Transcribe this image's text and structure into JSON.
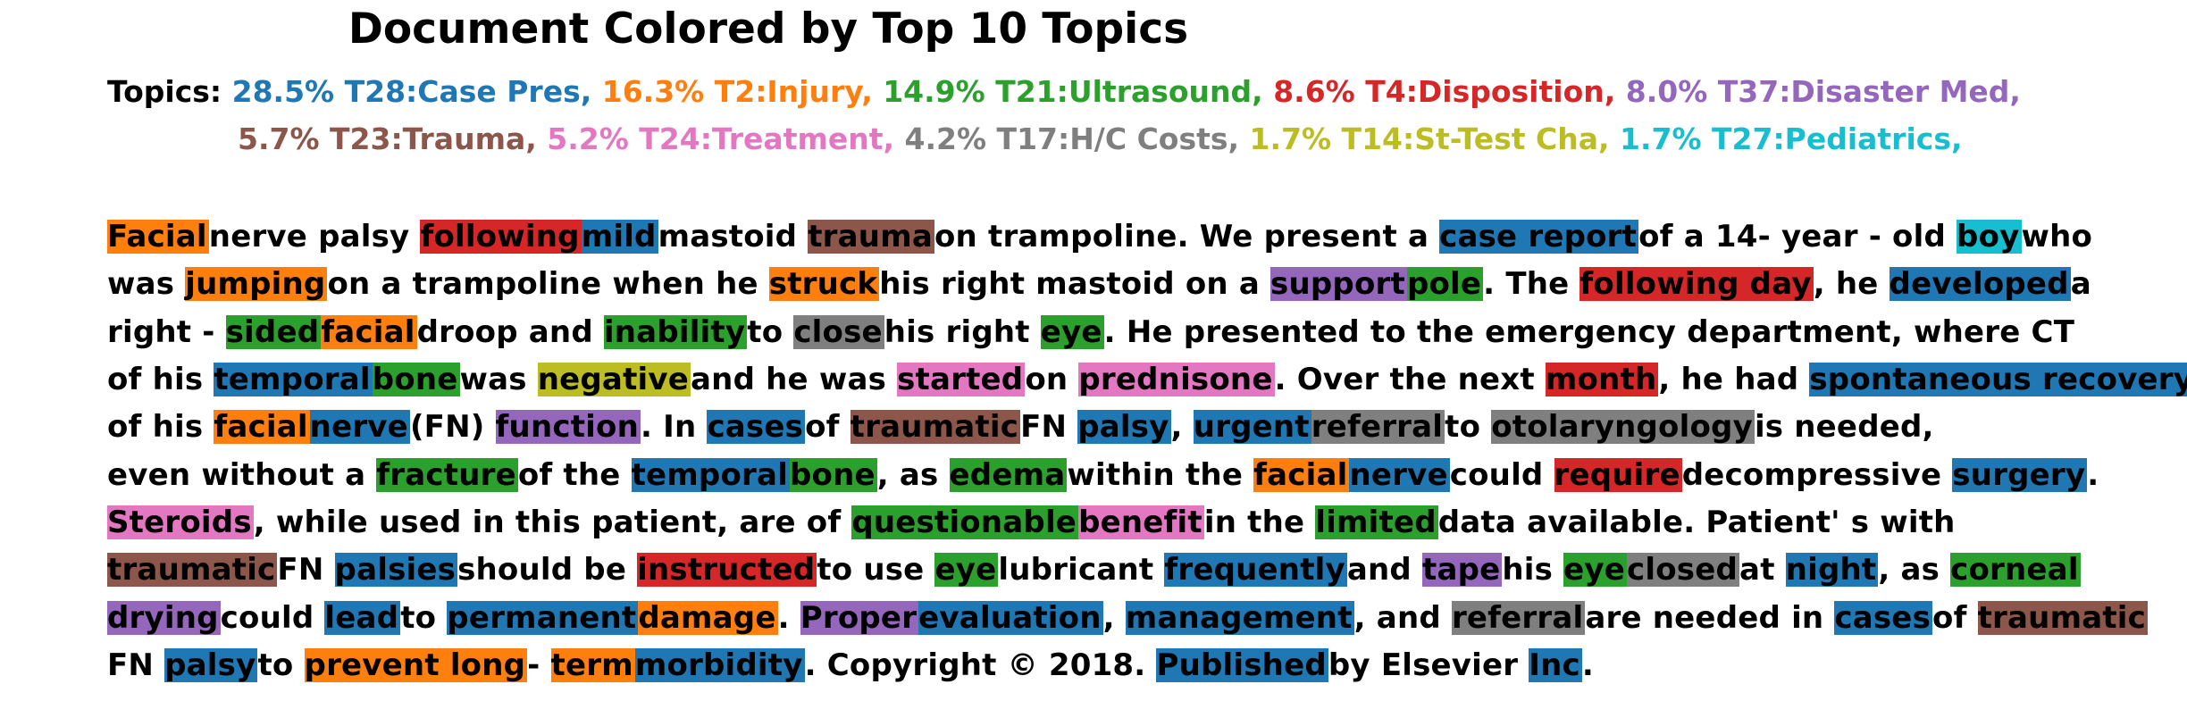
{
  "title": "Document Colored by Top 10 Topics",
  "topics_label": "Topics: ",
  "topic_lines": [
    [
      {
        "text": "28.5% T28:Case Pres, ",
        "color": "#1f77b4"
      },
      {
        "text": "16.3% T2:Injury, ",
        "color": "#ff7f0e"
      },
      {
        "text": "14.9% T21:Ultrasound, ",
        "color": "#2ca02c"
      },
      {
        "text": "8.6% T4:Disposition, ",
        "color": "#d62728"
      },
      {
        "text": "8.0% T37:Disaster Med, ",
        "color": "#9467bd"
      }
    ],
    [
      {
        "text": "5.7% T23:Trauma, ",
        "color": "#8c564b"
      },
      {
        "text": "5.2% T24:Treatment, ",
        "color": "#e377c2"
      },
      {
        "text": "4.2% T17:H/C Costs, ",
        "color": "#7f7f7f"
      },
      {
        "text": "1.7% T14:St-Test Cha, ",
        "color": "#bcbd22"
      },
      {
        "text": "1.7% T27:Pediatrics, ",
        "color": "#17becf"
      }
    ]
  ],
  "document_lines": [
    [
      {
        "t": "Facial ",
        "c": "#ff7f0e"
      },
      {
        "t": "nerve palsy "
      },
      {
        "t": "following ",
        "c": "#d62728"
      },
      {
        "t": "mild ",
        "c": "#1f77b4"
      },
      {
        "t": "mastoid "
      },
      {
        "t": "trauma ",
        "c": "#8c564b"
      },
      {
        "t": "on trampoline. We present a "
      },
      {
        "t": "case report ",
        "c": "#1f77b4"
      },
      {
        "t": "of a 14- year - old "
      },
      {
        "t": "boy ",
        "c": "#17becf"
      },
      {
        "t": "who"
      }
    ],
    [
      {
        "t": "was "
      },
      {
        "t": "jumping ",
        "c": "#ff7f0e"
      },
      {
        "t": "on a trampoline when he "
      },
      {
        "t": "struck ",
        "c": "#ff7f0e"
      },
      {
        "t": "his right mastoid on a "
      },
      {
        "t": "support ",
        "c": "#9467bd"
      },
      {
        "t": "pole",
        "c": "#2ca02c"
      },
      {
        "t": ". The "
      },
      {
        "t": "following day",
        "c": "#d62728"
      },
      {
        "t": ", he "
      },
      {
        "t": "developed ",
        "c": "#1f77b4"
      },
      {
        "t": "a"
      }
    ],
    [
      {
        "t": "right - "
      },
      {
        "t": "sided ",
        "c": "#2ca02c"
      },
      {
        "t": "facial ",
        "c": "#ff7f0e"
      },
      {
        "t": "droop and "
      },
      {
        "t": "inability ",
        "c": "#2ca02c"
      },
      {
        "t": "to "
      },
      {
        "t": "close ",
        "c": "#7f7f7f"
      },
      {
        "t": "his right "
      },
      {
        "t": "eye",
        "c": "#2ca02c"
      },
      {
        "t": ". He presented to the emergency department, where CT"
      }
    ],
    [
      {
        "t": "of his "
      },
      {
        "t": "temporal ",
        "c": "#1f77b4"
      },
      {
        "t": "bone ",
        "c": "#2ca02c"
      },
      {
        "t": "was "
      },
      {
        "t": "negative ",
        "c": "#bcbd22"
      },
      {
        "t": "and he was "
      },
      {
        "t": "started ",
        "c": "#e377c2"
      },
      {
        "t": "on "
      },
      {
        "t": "prednisone",
        "c": "#e377c2"
      },
      {
        "t": ". Over the next "
      },
      {
        "t": "month",
        "c": "#d62728"
      },
      {
        "t": ", he had "
      },
      {
        "t": "spontaneous recovery ",
        "c": "#1f77b4"
      }
    ],
    [
      {
        "t": "of his "
      },
      {
        "t": "facial ",
        "c": "#ff7f0e"
      },
      {
        "t": "nerve ",
        "c": "#1f77b4"
      },
      {
        "t": "(FN) "
      },
      {
        "t": "function",
        "c": "#9467bd"
      },
      {
        "t": ". In "
      },
      {
        "t": "cases ",
        "c": "#1f77b4"
      },
      {
        "t": "of "
      },
      {
        "t": "traumatic ",
        "c": "#8c564b"
      },
      {
        "t": "FN "
      },
      {
        "t": "palsy",
        "c": "#1f77b4"
      },
      {
        "t": ", "
      },
      {
        "t": "urgent ",
        "c": "#1f77b4"
      },
      {
        "t": "referral ",
        "c": "#7f7f7f"
      },
      {
        "t": "to "
      },
      {
        "t": "otolaryngology ",
        "c": "#7f7f7f"
      },
      {
        "t": "is needed,"
      }
    ],
    [
      {
        "t": "even without a "
      },
      {
        "t": "fracture ",
        "c": "#2ca02c"
      },
      {
        "t": "of the "
      },
      {
        "t": "temporal ",
        "c": "#1f77b4"
      },
      {
        "t": "bone",
        "c": "#2ca02c"
      },
      {
        "t": ", as "
      },
      {
        "t": "edema ",
        "c": "#2ca02c"
      },
      {
        "t": "within the "
      },
      {
        "t": "facial ",
        "c": "#ff7f0e"
      },
      {
        "t": "nerve ",
        "c": "#1f77b4"
      },
      {
        "t": "could "
      },
      {
        "t": "require ",
        "c": "#d62728"
      },
      {
        "t": "decompressive "
      },
      {
        "t": "surgery",
        "c": "#1f77b4"
      },
      {
        "t": "."
      }
    ],
    [
      {
        "t": "Steroids",
        "c": "#e377c2"
      },
      {
        "t": ", while used in this patient, are of "
      },
      {
        "t": "questionable ",
        "c": "#2ca02c"
      },
      {
        "t": "benefit ",
        "c": "#e377c2"
      },
      {
        "t": "in the "
      },
      {
        "t": "limited ",
        "c": "#2ca02c"
      },
      {
        "t": "data available. Patient' s with"
      }
    ],
    [
      {
        "t": "traumatic ",
        "c": "#8c564b"
      },
      {
        "t": "FN "
      },
      {
        "t": "palsies ",
        "c": "#1f77b4"
      },
      {
        "t": "should be "
      },
      {
        "t": "instructed ",
        "c": "#d62728"
      },
      {
        "t": "to use "
      },
      {
        "t": "eye ",
        "c": "#2ca02c"
      },
      {
        "t": "lubricant "
      },
      {
        "t": "frequently ",
        "c": "#1f77b4"
      },
      {
        "t": "and "
      },
      {
        "t": "tape ",
        "c": "#9467bd"
      },
      {
        "t": "his "
      },
      {
        "t": "eye ",
        "c": "#2ca02c"
      },
      {
        "t": "closed ",
        "c": "#7f7f7f"
      },
      {
        "t": "at "
      },
      {
        "t": "night",
        "c": "#1f77b4"
      },
      {
        "t": ", as "
      },
      {
        "t": "corneal ",
        "c": "#2ca02c"
      }
    ],
    [
      {
        "t": "drying ",
        "c": "#9467bd"
      },
      {
        "t": "could "
      },
      {
        "t": "lead ",
        "c": "#1f77b4"
      },
      {
        "t": "to "
      },
      {
        "t": "permanent ",
        "c": "#1f77b4"
      },
      {
        "t": "damage",
        "c": "#ff7f0e"
      },
      {
        "t": ". "
      },
      {
        "t": "Proper ",
        "c": "#9467bd"
      },
      {
        "t": "evaluation",
        "c": "#1f77b4"
      },
      {
        "t": ", "
      },
      {
        "t": "management",
        "c": "#1f77b4"
      },
      {
        "t": ", and "
      },
      {
        "t": "referral ",
        "c": "#7f7f7f"
      },
      {
        "t": "are needed in "
      },
      {
        "t": "cases ",
        "c": "#1f77b4"
      },
      {
        "t": "of "
      },
      {
        "t": "traumatic ",
        "c": "#8c564b"
      }
    ],
    [
      {
        "t": "FN "
      },
      {
        "t": "palsy ",
        "c": "#1f77b4"
      },
      {
        "t": "to "
      },
      {
        "t": "prevent long ",
        "c": "#ff7f0e"
      },
      {
        "t": "- "
      },
      {
        "t": "term ",
        "c": "#ff7f0e"
      },
      {
        "t": "morbidity",
        "c": "#1f77b4"
      },
      {
        "t": ". Copyright © 2018. "
      },
      {
        "t": "Published ",
        "c": "#1f77b4"
      },
      {
        "t": "by Elsevier "
      },
      {
        "t": "Inc",
        "c": "#1f77b4"
      },
      {
        "t": "."
      }
    ]
  ]
}
